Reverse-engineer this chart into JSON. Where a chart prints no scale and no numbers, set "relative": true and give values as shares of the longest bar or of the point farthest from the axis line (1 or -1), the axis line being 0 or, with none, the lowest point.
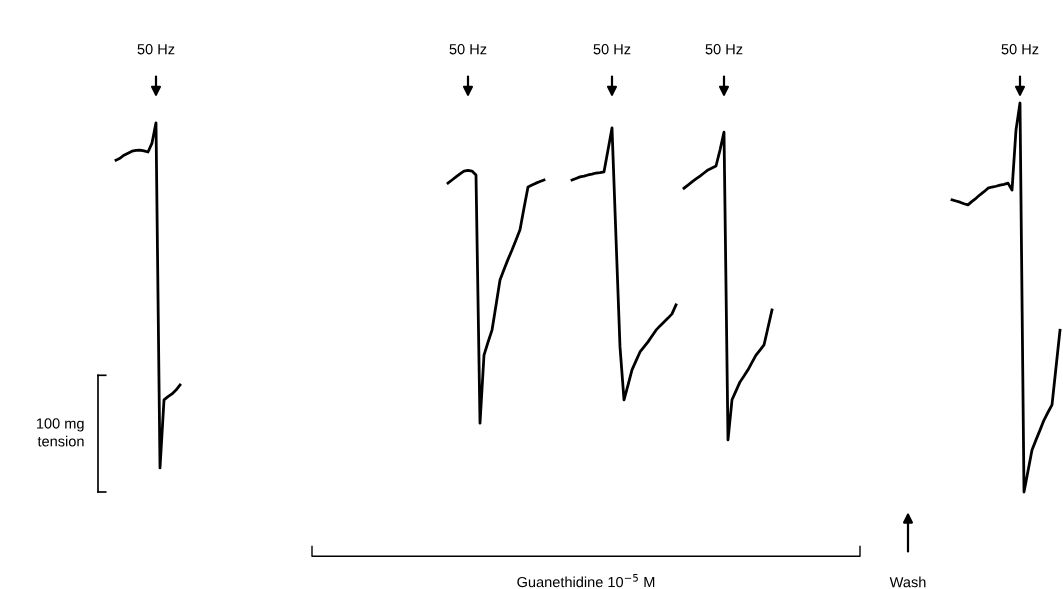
{
  "chart_data": {
    "type": "line",
    "relative": true,
    "categories": [
      null,
      null,
      null,
      null,
      null,
      null,
      null,
      null,
      null,
      null,
      null,
      null,
      null,
      null,
      null,
      null,
      null,
      null,
      null,
      null,
      null,
      null,
      null,
      null,
      null,
      null,
      null,
      null,
      null,
      null,
      null,
      null,
      null,
      null,
      null,
      null,
      null,
      null,
      null,
      null,
      null,
      null,
      null,
      null,
      null,
      null,
      null,
      null,
      null,
      null,
      null,
      null,
      null,
      null,
      null,
      null,
      null,
      null,
      null,
      null,
      null,
      null,
      null,
      null,
      null,
      null,
      null,
      null,
      null,
      null,
      null,
      null,
      null,
      null,
      null,
      null,
      null,
      null,
      null,
      null,
      null,
      null,
      null,
      null,
      null,
      null,
      null,
      null,
      null,
      null,
      null,
      null,
      null,
      null,
      null,
      null,
      null,
      null,
      null,
      null,
      null,
      null,
      null,
      null,
      null,
      null,
      null,
      null,
      null,
      null,
      null,
      null,
      null,
      null,
      null,
      null,
      null,
      null,
      null,
      null,
      null,
      null,
      null,
      null,
      null,
      null,
      null,
      null,
      null,
      null,
      null,
      null,
      null,
      null,
      null,
      null,
      null,
      null,
      null,
      null,
      null,
      null,
      null,
      null,
      null,
      null,
      null,
      null,
      null,
      null,
      null,
      null,
      null,
      null,
      null,
      null,
      null,
      null,
      null,
      null,
      null,
      null,
      null,
      null,
      null,
      null,
      null,
      null,
      null,
      null,
      null,
      null,
      null,
      null,
      null,
      null,
      null,
      null,
      null,
      null,
      null,
      null,
      null,
      null,
      null,
      null,
      null,
      null,
      null,
      null,
      null,
      null,
      null,
      null,
      null,
      null,
      null,
      null,
      null,
      null,
      null,
      null,
      null,
      null,
      null,
      null,
      null,
      null,
      null,
      null,
      null,
      null,
      null,
      null,
      null,
      null,
      null,
      null,
      null,
      null,
      null,
      null,
      null,
      null,
      null,
      null,
      null,
      null,
      null,
      null,
      null,
      null,
      null,
      null,
      null,
      null,
      null,
      null,
      null,
      null,
      null
    ],
    "series": [
      {
        "color": "#000000",
        "values": [
          null,
          null,
          null,
          null,
          0.853,
          0.858,
          0.866,
          0.871,
          0.876,
          0.878,
          0.879,
          0.877,
          0.874,
          0.897,
          0.949,
          0.062,
          0.237,
          0.245,
          0.252,
          0.262,
          0.275,
          null,
          null,
          null,
          null,
          null,
          null,
          null,
          null,
          null,
          null,
          null,
          null,
          null,
          null,
          null,
          null,
          null,
          null,
          null,
          null,
          null,
          null,
          null,
          null,
          null,
          null,
          null,
          null,
          null,
          null,
          null,
          null,
          null,
          null,
          null,
          null,
          null,
          null,
          null,
          null,
          null,
          null,
          null,
          null,
          null,
          null,
          null,
          null,
          null,
          null,
          null,
          null,
          null,
          null,
          null,
          null,
          null,
          null,
          null,
          null,
          null,
          null,
          null,
          null,
          null,
          null,
          null,
          null,
          null,
          null,
          null,
          null,
          null,
          null,
          null,
          null,
          null,
          null,
          null,
          null,
          null,
          null,
          null,
          null,
          null,
          null,
          null,
          null,
          null,
          null,
          null,
          null,
          null,
          null,
          null,
          null,
          null,
          null,
          null,
          null,
          null,
          null,
          null,
          null,
          null,
          null,
          null,
          null,
          null,
          null,
          null,
          null,
          null,
          null,
          null,
          null,
          null,
          null,
          null,
          null,
          null,
          null,
          null,
          null,
          null,
          null,
          null,
          null,
          null,
          null,
          null,
          null,
          null,
          null,
          null,
          null,
          null,
          null,
          null,
          null,
          null,
          null,
          null,
          null,
          null,
          null,
          null,
          null,
          null,
          null,
          null,
          null,
          null,
          null,
          null,
          null,
          null,
          null,
          null,
          null,
          null,
          null,
          null,
          null,
          null,
          null,
          null,
          null,
          null,
          null,
          null,
          null,
          null,
          null,
          null,
          null,
          null,
          null,
          null,
          null,
          null,
          null,
          null,
          null,
          null,
          null,
          null,
          null,
          null,
          null,
          null,
          null,
          null,
          null,
          null,
          null,
          null,
          null,
          null,
          null,
          null,
          null,
          null,
          null,
          null,
          null,
          null,
          null,
          null,
          null,
          null,
          null,
          null,
          null,
          null,
          null,
          null,
          null,
          null,
          null
        ]
      },
      {
        "color": "#000000",
        "values": [
          null,
          null,
          null,
          null,
          null,
          null,
          null,
          null,
          null,
          null,
          null,
          null,
          null,
          null,
          null,
          null,
          null,
          null,
          null,
          null,
          null,
          null,
          null,
          null,
          null,
          null,
          null,
          null,
          null,
          null,
          null,
          null,
          null,
          null,
          null,
          null,
          null,
          null,
          null,
          null,
          null,
          null,
          null,
          null,
          null,
          null,
          null,
          null,
          null,
          null,
          null,
          null,
          null,
          null,
          null,
          null,
          null,
          null,
          null,
          null,
          null,
          null,
          null,
          null,
          null,
          null,
          null,
          null,
          null,
          null,
          null,
          null,
          null,
          null,
          null,
          null,
          null,
          null,
          null,
          null,
          null,
          null,
          null,
          null,
          null,
          null,
          null,
          0.794,
          0.802,
          0.81,
          0.818,
          0.825,
          0.827,
          0.825,
          0.815,
          0.177,
          0.352,
          0.385,
          0.416,
          0.48,
          0.545,
          0.572,
          0.598,
          0.622,
          0.648,
          0.674,
          0.73,
          0.784,
          0.789,
          0.794,
          0.798,
          0.802,
          null,
          null,
          null,
          null,
          null,
          null,
          null,
          null,
          null,
          null,
          null,
          null,
          null,
          null,
          null,
          null,
          null,
          null,
          null,
          null,
          null,
          null,
          null,
          null,
          null,
          null,
          null,
          null,
          null,
          null,
          null,
          null,
          null,
          null,
          null,
          null,
          null,
          null,
          null,
          null,
          null,
          null,
          null,
          null,
          null,
          null,
          null,
          null,
          null,
          null,
          null,
          null,
          null,
          null,
          null,
          null,
          null,
          null,
          null,
          null,
          null,
          null,
          null,
          null,
          null,
          null,
          null,
          null,
          null,
          null,
          null,
          null,
          null,
          null,
          null,
          null,
          null,
          null,
          null,
          null,
          null,
          null,
          null,
          null,
          null,
          null,
          null,
          null,
          null,
          null,
          null,
          null,
          null,
          null,
          null,
          null,
          null,
          null,
          null,
          null,
          null,
          null,
          null,
          null,
          null,
          null,
          null,
          null,
          null,
          null,
          null,
          null,
          null,
          null,
          null,
          null,
          null,
          null,
          null,
          null,
          null,
          null,
          null,
          null,
          null,
          null,
          null,
          null,
          null
        ]
      },
      {
        "color": "#000000",
        "values": [
          null,
          null,
          null,
          null,
          null,
          null,
          null,
          null,
          null,
          null,
          null,
          null,
          null,
          null,
          null,
          null,
          null,
          null,
          null,
          null,
          null,
          null,
          null,
          null,
          null,
          null,
          null,
          null,
          null,
          null,
          null,
          null,
          null,
          null,
          null,
          null,
          null,
          null,
          null,
          null,
          null,
          null,
          null,
          null,
          null,
          null,
          null,
          null,
          null,
          null,
          null,
          null,
          null,
          null,
          null,
          null,
          null,
          null,
          null,
          null,
          null,
          null,
          null,
          null,
          null,
          null,
          null,
          null,
          null,
          null,
          null,
          null,
          null,
          null,
          null,
          null,
          null,
          null,
          null,
          null,
          null,
          null,
          null,
          null,
          null,
          null,
          null,
          null,
          null,
          null,
          null,
          null,
          null,
          null,
          null,
          null,
          null,
          null,
          null,
          null,
          null,
          null,
          null,
          null,
          null,
          null,
          null,
          null,
          null,
          null,
          null,
          null,
          null,
          null,
          null,
          null,
          null,
          null,
          0.802,
          0.806,
          0.81,
          0.812,
          0.815,
          0.817,
          0.82,
          0.821,
          0.823,
          0.879,
          0.936,
          0.653,
          0.373,
          0.237,
          0.275,
          0.314,
          0.337,
          0.36,
          0.373,
          0.386,
          0.401,
          0.416,
          0.427,
          0.437,
          0.447,
          0.458,
          0.481,
          null,
          null,
          null,
          null,
          null,
          null,
          null,
          null,
          null,
          null,
          null,
          null,
          null,
          null,
          null,
          null,
          null,
          null,
          null,
          null,
          null,
          null,
          null,
          null,
          null,
          null,
          null,
          null,
          null,
          null,
          null,
          null,
          null,
          null,
          null,
          null,
          null,
          null,
          null,
          null,
          null,
          null,
          null,
          null,
          null,
          null,
          null,
          null,
          null,
          null,
          null,
          null,
          null,
          null,
          null,
          null,
          null,
          null,
          null,
          null,
          null,
          null,
          null,
          null,
          null,
          null,
          null,
          null,
          null,
          null,
          null,
          null,
          null,
          null,
          null,
          null,
          null,
          null,
          null,
          null,
          null,
          null,
          null,
          null,
          null,
          null,
          null,
          null,
          null,
          null,
          null,
          null,
          null,
          null,
          null,
          null
        ]
      },
      {
        "color": "#000000",
        "values": [
          null,
          null,
          null,
          null,
          null,
          null,
          null,
          null,
          null,
          null,
          null,
          null,
          null,
          null,
          null,
          null,
          null,
          null,
          null,
          null,
          null,
          null,
          null,
          null,
          null,
          null,
          null,
          null,
          null,
          null,
          null,
          null,
          null,
          null,
          null,
          null,
          null,
          null,
          null,
          null,
          null,
          null,
          null,
          null,
          null,
          null,
          null,
          null,
          null,
          null,
          null,
          null,
          null,
          null,
          null,
          null,
          null,
          null,
          null,
          null,
          null,
          null,
          null,
          null,
          null,
          null,
          null,
          null,
          null,
          null,
          null,
          null,
          null,
          null,
          null,
          null,
          null,
          null,
          null,
          null,
          null,
          null,
          null,
          null,
          null,
          null,
          null,
          null,
          null,
          null,
          null,
          null,
          null,
          null,
          null,
          null,
          null,
          null,
          null,
          null,
          null,
          null,
          null,
          null,
          null,
          null,
          null,
          null,
          null,
          null,
          null,
          null,
          null,
          null,
          null,
          null,
          null,
          null,
          null,
          null,
          null,
          null,
          null,
          null,
          null,
          null,
          null,
          null,
          null,
          null,
          null,
          null,
          null,
          null,
          null,
          null,
          null,
          null,
          null,
          null,
          null,
          null,
          null,
          null,
          null,
          null,
          0.781,
          0.789,
          0.797,
          0.805,
          0.812,
          0.82,
          0.828,
          0.833,
          0.838,
          0.879,
          0.925,
          0.134,
          0.237,
          0.26,
          0.283,
          0.298,
          0.314,
          0.333,
          0.352,
          0.365,
          0.378,
          0.423,
          0.468,
          null,
          null,
          null,
          null,
          null,
          null,
          null,
          null,
          null,
          null,
          null,
          null,
          null,
          null,
          null,
          null,
          null,
          null,
          null,
          null,
          null,
          null,
          null,
          null,
          null,
          null,
          null,
          null,
          null,
          null,
          null,
          null,
          null,
          null,
          null,
          null,
          null,
          null,
          null,
          null,
          null,
          null,
          null,
          null,
          null,
          null,
          null,
          null,
          null,
          null,
          null,
          null,
          null,
          null,
          null,
          null,
          null,
          null,
          null,
          null,
          null,
          null,
          null,
          null,
          null,
          null,
          null,
          null,
          null,
          null,
          null,
          null
        ]
      },
      {
        "color": "#000000",
        "values": [
          null,
          null,
          null,
          null,
          null,
          null,
          null,
          null,
          null,
          null,
          null,
          null,
          null,
          null,
          null,
          null,
          null,
          null,
          null,
          null,
          null,
          null,
          null,
          null,
          null,
          null,
          null,
          null,
          null,
          null,
          null,
          null,
          null,
          null,
          null,
          null,
          null,
          null,
          null,
          null,
          null,
          null,
          null,
          null,
          null,
          null,
          null,
          null,
          null,
          null,
          null,
          null,
          null,
          null,
          null,
          null,
          null,
          null,
          null,
          null,
          null,
          null,
          null,
          null,
          null,
          null,
          null,
          null,
          null,
          null,
          null,
          null,
          null,
          null,
          null,
          null,
          null,
          null,
          null,
          null,
          null,
          null,
          null,
          null,
          null,
          null,
          null,
          null,
          null,
          null,
          null,
          null,
          null,
          null,
          null,
          null,
          null,
          null,
          null,
          null,
          null,
          null,
          null,
          null,
          null,
          null,
          null,
          null,
          null,
          null,
          null,
          null,
          null,
          null,
          null,
          null,
          null,
          null,
          null,
          null,
          null,
          null,
          null,
          null,
          null,
          null,
          null,
          null,
          null,
          null,
          null,
          null,
          null,
          null,
          null,
          null,
          null,
          null,
          null,
          null,
          null,
          null,
          null,
          null,
          null,
          null,
          null,
          null,
          null,
          null,
          null,
          null,
          null,
          null,
          null,
          null,
          null,
          null,
          null,
          null,
          null,
          null,
          null,
          null,
          null,
          null,
          null,
          null,
          null,
          null,
          null,
          null,
          null,
          null,
          null,
          null,
          null,
          null,
          null,
          null,
          null,
          null,
          null,
          null,
          null,
          null,
          null,
          null,
          null,
          null,
          null,
          null,
          null,
          null,
          null,
          null,
          null,
          null,
          null,
          null,
          null,
          null,
          null,
          null,
          null,
          null,
          null,
          null,
          null,
          null,
          null,
          null,
          null,
          0.751,
          0.748,
          0.745,
          0.741,
          0.738,
          0.747,
          0.755,
          0.764,
          0.772,
          0.781,
          0.784,
          0.786,
          0.789,
          0.791,
          0.794,
          0.776,
          0.931,
          1.0,
          0.0,
          0.054,
          0.108,
          0.134,
          0.159,
          0.185,
          0.205,
          0.224,
          0.32,
          0.416
        ]
      }
    ],
    "annotations": [
      "50 Hz",
      "50 Hz",
      "50 Hz",
      "50 Hz",
      "50 Hz",
      "100 mg\ntension",
      "Guanethidine 10$^{−5}$ M",
      "Wash"
    ]
  }
}
